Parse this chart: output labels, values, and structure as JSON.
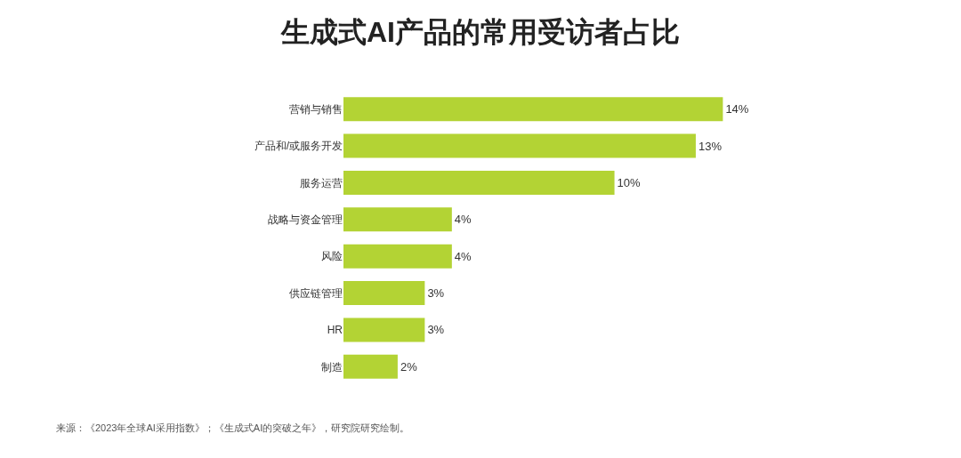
{
  "chart_data": {
    "type": "bar",
    "orientation": "horizontal",
    "title": "生成式AI产品的常用受访者占比",
    "categories": [
      "营销与销售",
      "产品和/或服务开发",
      "服务运营",
      "战略与资金管理",
      "风险",
      "供应链管理",
      "HR",
      "制造"
    ],
    "values": [
      14,
      13,
      10,
      4,
      4,
      3,
      3,
      2
    ],
    "value_labels": [
      "14%",
      "13%",
      "10%",
      "4%",
      "4%",
      "3%",
      "3%",
      "2%"
    ],
    "color": "#b3d334",
    "grid": false,
    "legend": false,
    "annotations": [
      "来源：《2023年全球AI采用指数》；《生成式AI的突破之年》，研究院研究绘制。"
    ]
  }
}
